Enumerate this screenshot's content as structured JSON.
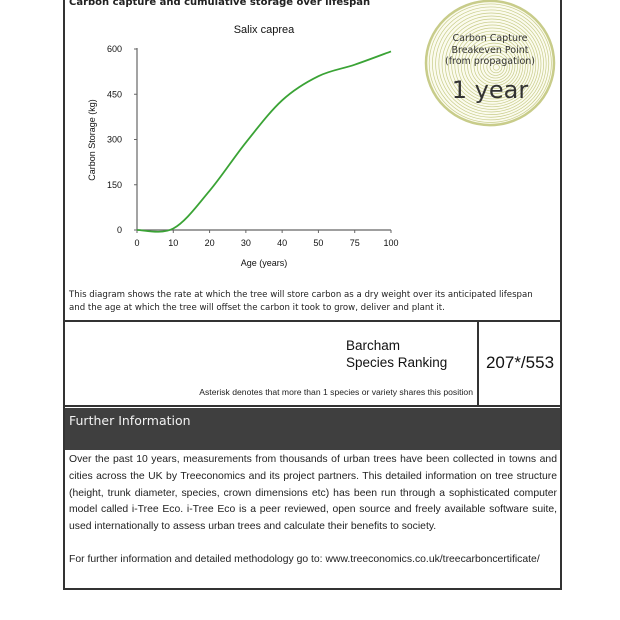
{
  "section_title": "Carbon capture and cumulative storage over lifespan",
  "chart_data": {
    "type": "line",
    "title": "Salix caprea",
    "xlabel": "Age (years)",
    "ylabel": "Carbon Storage (kg)",
    "categories": [
      "0",
      "10",
      "20",
      "30",
      "40",
      "50",
      "75",
      "100"
    ],
    "x_ticks": [
      "0",
      "10",
      "20",
      "30",
      "40",
      "50",
      "75",
      "100"
    ],
    "y_ticks": [
      "0",
      "150",
      "300",
      "450",
      "600"
    ],
    "ylim": [
      0,
      600
    ],
    "series": [
      {
        "values": [
          0,
          5,
          130,
          290,
          430,
          510,
          548,
          592
        ]
      }
    ],
    "line_color": "#3aa335",
    "grid": false
  },
  "badge": {
    "lines": [
      "Carbon Capture",
      "Breakeven Point",
      "(from propagation)"
    ],
    "value": "1 year",
    "ring_color": "#c8cc8a"
  },
  "chart_note": "This diagram shows the rate at which the tree will store carbon as a dry weight over its anticipated lifespan and the age at which the tree will offset the carbon it took to grow, deliver and plant it.",
  "ranking": {
    "label_line1": "Barcham",
    "label_line2": "Species Ranking",
    "value": "207*/553",
    "footnote": "Asterisk denotes that more than 1 species or variety shares this position"
  },
  "further_info": {
    "title": "Further Information",
    "body": "Over the past 10 years, measurements from thousands of urban trees have been collected in towns and cities across the UK by Treeconomics and its project partners. This detailed information on tree structure (height, trunk diameter, species, crown dimensions etc) has been run through a sophisticated computer model called i-Tree Eco. i-Tree Eco is a peer reviewed, open source and freely available software suite, used internationally to assess urban trees and calculate their benefits to society.",
    "link_text": "For further information and detailed methodology go to: www.treeconomics.co.uk/treecarboncertificate/"
  }
}
